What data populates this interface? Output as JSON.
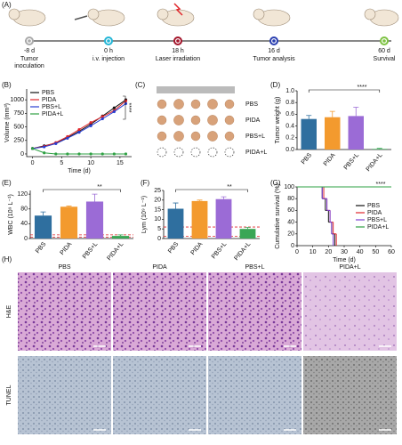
{
  "panel_labels": [
    "(A)",
    "(B)",
    "(C)",
    "(D)",
    "(E)",
    "(F)",
    "(G)",
    "(H)"
  ],
  "timeline": [
    {
      "time": "-8 d",
      "event_lines": [
        "Tumor",
        "inoculation"
      ],
      "color": "#aaaaaa"
    },
    {
      "time": "0 h",
      "event_lines": [
        "i.v. injection"
      ],
      "color": "#22b5d6"
    },
    {
      "time": "18 h",
      "event_lines": [
        "Laser irradiation"
      ],
      "color": "#a3142a"
    },
    {
      "time": "16 d",
      "event_lines": [
        "Tumor analysis"
      ],
      "color": "#2a3fb0"
    },
    {
      "time": "60 d",
      "event_lines": [
        "Survival"
      ],
      "color": "#7dc242"
    }
  ],
  "photo": {
    "labels": [
      "PBS",
      "PIDA",
      "PBS+L",
      "PIDA+L"
    ]
  },
  "histology": {
    "columns": [
      "PBS",
      "PIDA",
      "PBS+L",
      "PIDA+L"
    ],
    "rows": [
      "H&E",
      "TUNEL"
    ]
  },
  "chart_data": [
    {
      "type": "line",
      "xlabel": "Time (d)",
      "ylabel": "Volume (mm³)",
      "significance": "****",
      "legend": "upper left",
      "x": [
        0,
        2,
        4,
        6,
        8,
        10,
        12,
        14,
        16
      ],
      "xlim": [
        -1,
        17
      ],
      "xticks": [
        0,
        5,
        10,
        15
      ],
      "ylim": [
        -50,
        1200
      ],
      "yticks": [
        0,
        250,
        500,
        750,
        1000
      ],
      "series": [
        {
          "name": "PBS",
          "color": "#111111",
          "values": [
            100,
            150,
            200,
            300,
            420,
            550,
            700,
            850,
            1000
          ]
        },
        {
          "name": "PIDA",
          "color": "#e0262b",
          "values": [
            100,
            140,
            210,
            320,
            450,
            580,
            690,
            800,
            980
          ]
        },
        {
          "name": "PBS+L",
          "color": "#2a3fd0",
          "values": [
            100,
            130,
            190,
            290,
            400,
            520,
            650,
            780,
            930
          ]
        },
        {
          "name": "PIDA+L",
          "color": "#2ea043",
          "values": [
            100,
            20,
            0,
            0,
            0,
            0,
            0,
            0,
            0
          ]
        }
      ]
    },
    {
      "type": "bar",
      "ylabel": "Tumor weight (g)",
      "significance": "****",
      "categories": [
        "PBS",
        "PIDA",
        "PBS+L",
        "PIDA+L"
      ],
      "values": [
        0.52,
        0.55,
        0.57,
        0.01
      ],
      "errors": [
        0.06,
        0.1,
        0.15,
        0.01
      ],
      "colors": [
        "#2f6f9f",
        "#f39a2e",
        "#9b6bd6",
        "#3aa655"
      ],
      "ylim": [
        0,
        1
      ],
      "yticks": [
        {
          "value": 0,
          "label": "0.0"
        },
        0.2,
        0.4,
        0.6,
        0.8,
        {
          "value": 1,
          "label": "1.0"
        }
      ]
    },
    {
      "type": "bar",
      "ylabel": "WBC (10⁹ L⁻¹)",
      "significance": "**",
      "categories": [
        "PBS",
        "PIDA",
        "PBS+L",
        "PIDA+L"
      ],
      "values": [
        62,
        86,
        100,
        7
      ],
      "errors": [
        10,
        2,
        20,
        3
      ],
      "colors": [
        "#2f6f9f",
        "#f39a2e",
        "#9b6bd6",
        "#3aa655"
      ],
      "reference_lines": [
        4,
        10
      ],
      "ylim": [
        0,
        130
      ],
      "yticks": [
        0,
        40,
        80,
        120
      ]
    },
    {
      "type": "bar",
      "ylabel": "Lym (10⁹ L⁻¹)",
      "significance": "**",
      "categories": [
        "PBS",
        "PIDA",
        "PBS+L",
        "PIDA+L"
      ],
      "values": [
        15.5,
        19.5,
        20.5,
        5
      ],
      "errors": [
        3,
        0.5,
        1.2,
        0.8
      ],
      "colors": [
        "#2f6f9f",
        "#f39a2e",
        "#9b6bd6",
        "#3aa655"
      ],
      "reference_lines": [
        1.2,
        6
      ],
      "ylim": [
        0,
        25
      ],
      "yticks": [
        0,
        5,
        10,
        15,
        20,
        25
      ]
    },
    {
      "type": "step",
      "xlabel": "Time (d)",
      "ylabel": "Cumulative survival (%)",
      "significance": "****",
      "legend": "center right",
      "xlim": [
        0,
        60
      ],
      "xticks": [
        0,
        10,
        20,
        30,
        40,
        50,
        60
      ],
      "ylim": [
        0,
        100
      ],
      "yticks": [
        0,
        20,
        40,
        60,
        80,
        100
      ],
      "series": [
        {
          "name": "PBS",
          "color": "#111111",
          "x": [
            0,
            16,
            18,
            20,
            22,
            24
          ],
          "values": [
            100,
            80,
            60,
            40,
            20,
            0
          ]
        },
        {
          "name": "PIDA",
          "color": "#e0262b",
          "x": [
            0,
            17,
            19,
            21,
            23,
            25
          ],
          "values": [
            100,
            80,
            60,
            40,
            20,
            0
          ]
        },
        {
          "name": "PBS+L",
          "color": "#7b3fd6",
          "x": [
            0,
            16,
            19,
            21,
            22,
            23
          ],
          "values": [
            100,
            80,
            60,
            40,
            20,
            0
          ]
        },
        {
          "name": "PIDA+L",
          "color": "#2ea043",
          "x": [
            0,
            60
          ],
          "values": [
            100,
            100
          ]
        }
      ]
    }
  ]
}
